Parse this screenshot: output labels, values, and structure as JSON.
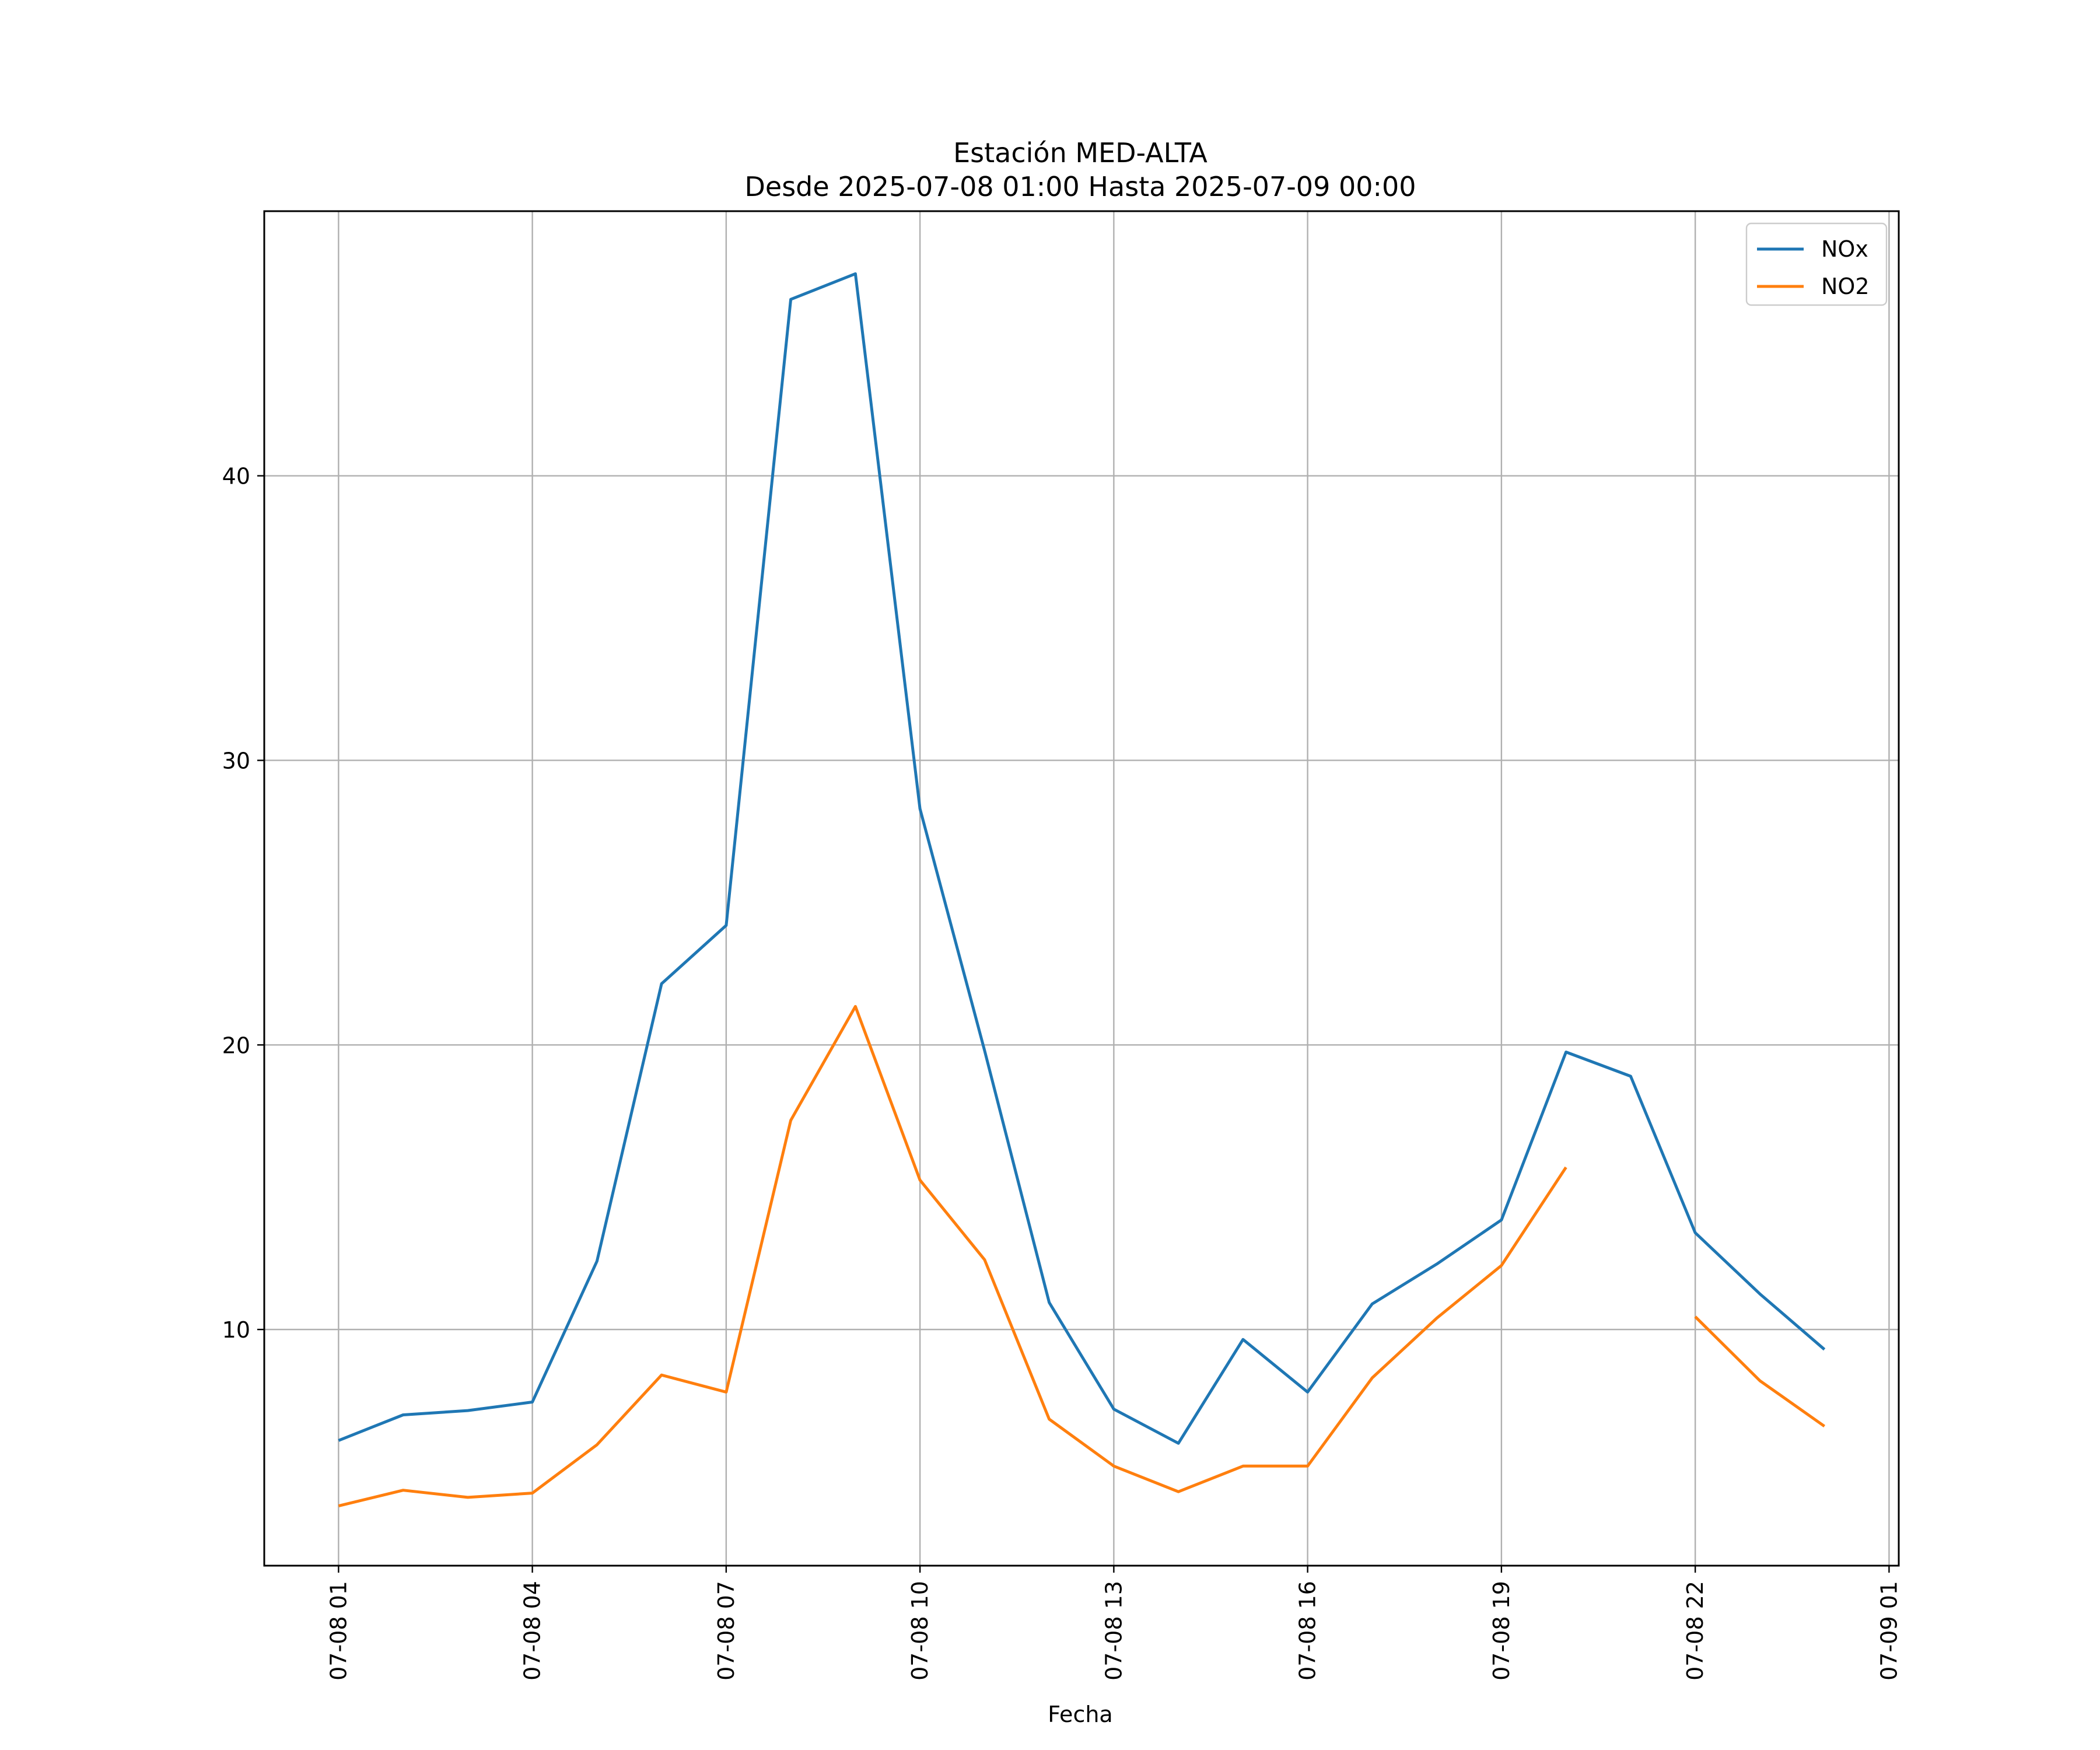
{
  "chart_data": {
    "type": "line",
    "title": "Estación MED-ALTA",
    "subtitle": "Desde 2025-07-08 01:00 Hasta 2025-07-09 00:00",
    "xlabel": "Fecha",
    "ylabel": "",
    "x": [
      "2025-07-08 01:00",
      "2025-07-08 02:00",
      "2025-07-08 03:00",
      "2025-07-08 04:00",
      "2025-07-08 05:00",
      "2025-07-08 06:00",
      "2025-07-08 07:00",
      "2025-07-08 08:00",
      "2025-07-08 09:00",
      "2025-07-08 10:00",
      "2025-07-08 11:00",
      "2025-07-08 12:00",
      "2025-07-08 13:00",
      "2025-07-08 14:00",
      "2025-07-08 15:00",
      "2025-07-08 16:00",
      "2025-07-08 17:00",
      "2025-07-08 18:00",
      "2025-07-08 19:00",
      "2025-07-08 20:00",
      "2025-07-08 21:00",
      "2025-07-08 22:00",
      "2025-07-08 23:00",
      "2025-07-09 00:00"
    ],
    "x_ticks": [
      "07-08 01",
      "07-08 04",
      "07-08 07",
      "07-08 10",
      "07-08 13",
      "07-08 16",
      "07-08 19",
      "07-08 22",
      "07-09 01"
    ],
    "x_tick_values": [
      "2025-07-08 01:00",
      "2025-07-08 04:00",
      "2025-07-08 07:00",
      "2025-07-08 10:00",
      "2025-07-08 13:00",
      "2025-07-08 16:00",
      "2025-07-08 19:00",
      "2025-07-08 22:00",
      "2025-07-09 01:00"
    ],
    "xlim": [
      "2025-07-07 23:51",
      "2025-07-09 01:09"
    ],
    "y_ticks": [
      10,
      20,
      30,
      40
    ],
    "ylim": [
      1.7,
      49.3
    ],
    "grid": true,
    "legend_position": "top-right",
    "series": [
      {
        "name": "NOx",
        "color": "#1f77b4",
        "values": [
          6.1,
          7.0,
          7.15,
          7.45,
          12.4,
          22.15,
          24.2,
          46.2,
          47.1,
          28.3,
          19.8,
          10.95,
          7.2,
          6.0,
          9.65,
          7.8,
          10.9,
          12.3,
          13.85,
          19.75,
          18.9,
          13.4,
          11.25,
          9.3
        ]
      },
      {
        "name": "NO2",
        "color": "#ff7f0e",
        "values": [
          3.8,
          4.35,
          4.1,
          4.25,
          5.95,
          8.4,
          7.8,
          17.35,
          21.35,
          15.25,
          12.45,
          6.85,
          5.2,
          4.3,
          5.2,
          5.2,
          8.3,
          10.4,
          12.25,
          15.7,
          null,
          10.45,
          8.2,
          6.6
        ]
      }
    ]
  }
}
